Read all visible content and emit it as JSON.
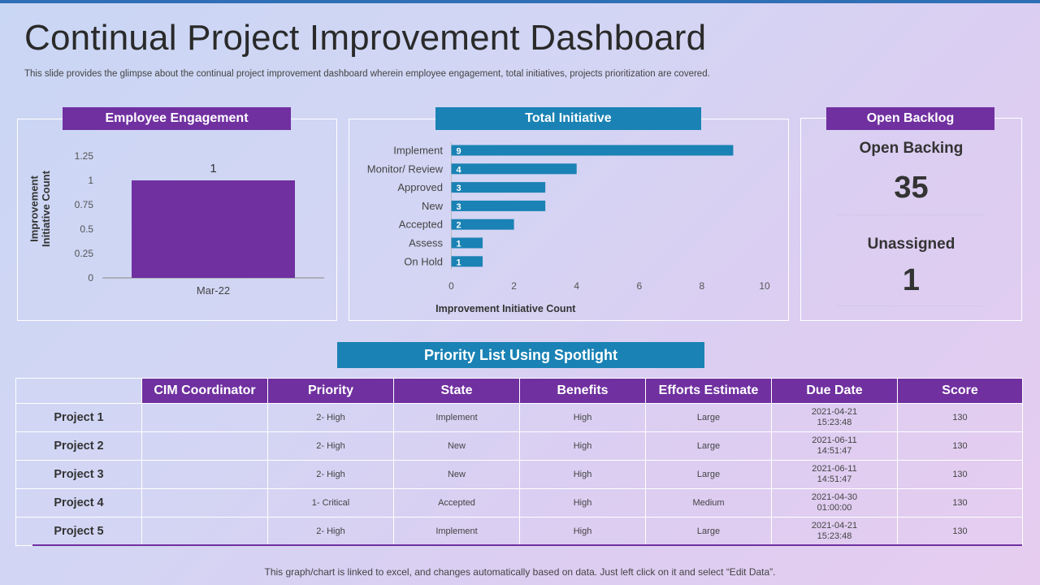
{
  "title": "Continual Project Improvement Dashboard",
  "subtitle": "This slide provides the glimpse about the continual project improvement dashboard wherein employee engagement, total initiatives, projects prioritization are covered.",
  "colors": {
    "purple": "#7030a0",
    "teal": "#1a82b4"
  },
  "engagement": {
    "header": "Employee Engagement"
  },
  "initiative": {
    "header": "Total Initiative"
  },
  "backlog": {
    "header": "Open Backlog",
    "open_label": "Open Backing",
    "open_value": "35",
    "unassigned_label": "Unassigned",
    "unassigned_value": "1"
  },
  "chart_data": [
    {
      "type": "bar",
      "orientation": "vertical",
      "categories": [
        "Mar-22"
      ],
      "values": [
        1
      ],
      "data_labels": [
        "1"
      ],
      "ylabel": "Improvement Initiative Count",
      "ylim": [
        0,
        1.25
      ],
      "yticks": [
        "0",
        "0.25",
        "0.5",
        "0.75",
        "1",
        "1.25"
      ],
      "color": "#7030a0"
    },
    {
      "type": "bar",
      "orientation": "horizontal",
      "categories": [
        "Implement",
        "Monitor/ Review",
        "Approved",
        "New",
        "Accepted",
        "Assess",
        "On Hold"
      ],
      "values": [
        9,
        4,
        3,
        3,
        2,
        1,
        1
      ],
      "xlabel": "Improvement Initiative Count",
      "xlim": [
        0,
        10
      ],
      "xticks": [
        "0",
        "2",
        "4",
        "6",
        "8",
        "10"
      ],
      "color": "#1a82b4"
    }
  ],
  "priority": {
    "title": "Priority List Using Spotlight",
    "columns": [
      "CIM Coordinator",
      "Priority",
      "State",
      "Benefits",
      "Efforts  Estimate",
      "Due Date",
      "Score"
    ],
    "rows": [
      {
        "name": "Project 1",
        "coordinator": "",
        "priority": "2- High",
        "state": "Implement",
        "benefits": "High",
        "effort": "Large",
        "due_date": "2021-04-21",
        "due_time": "15:23:48",
        "score": "130"
      },
      {
        "name": "Project 2",
        "coordinator": "",
        "priority": "2- High",
        "state": "New",
        "benefits": "High",
        "effort": "Large",
        "due_date": "2021-06-11",
        "due_time": "14:51:47",
        "score": "130"
      },
      {
        "name": "Project 3",
        "coordinator": "",
        "priority": "2- High",
        "state": "New",
        "benefits": "High",
        "effort": "Large",
        "due_date": "2021-06-11",
        "due_time": "14:51:47",
        "score": "130"
      },
      {
        "name": "Project 4",
        "coordinator": "",
        "priority": "1- Critical",
        "state": "Accepted",
        "benefits": "High",
        "effort": "Medium",
        "due_date": "2021-04-30",
        "due_time": "01:00:00",
        "score": "130"
      },
      {
        "name": "Project 5",
        "coordinator": "",
        "priority": "2- High",
        "state": "Implement",
        "benefits": "High",
        "effort": "Large",
        "due_date": "2021-04-21",
        "due_time": "15:23:48",
        "score": "130"
      }
    ]
  },
  "footer": "This graph/chart is linked to excel, and changes automatically based on data. Just left click on it and select “Edit Data”."
}
